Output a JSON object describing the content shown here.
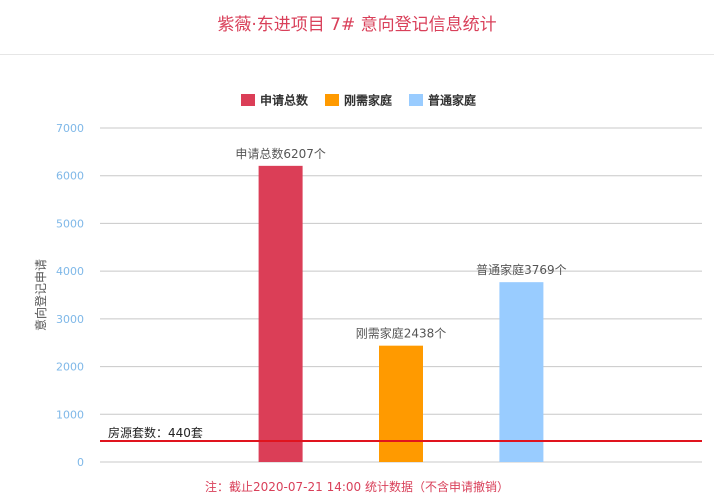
{
  "title": "紫薇·东进项目 7# 意向登记信息统计",
  "footnote": "注：截止2020-07-21 14:00 统计数据（不含申请撤销）",
  "colors": {
    "title": "#d9405a",
    "axis_tick": "#7fb8e8",
    "grid": "#c8c8c8",
    "reference_line": "#e0141e"
  },
  "chart_data": {
    "type": "bar",
    "categories": [
      "申请总数",
      "刚需家庭",
      "普通家庭"
    ],
    "values": [
      6207,
      2438,
      3769
    ],
    "colors": [
      "#db3e57",
      "#ff9a00",
      "#99ccff"
    ],
    "data_labels": [
      "申请总数6207个",
      "刚需家庭2438个",
      "普通家庭3769个"
    ],
    "legend": [
      "申请总数",
      "刚需家庭",
      "普通家庭"
    ],
    "legend_position": "top-center",
    "ylabel": "意向登记申请",
    "xlabel": "",
    "ylim": [
      0,
      7000
    ],
    "yticks": [
      "0",
      "1000",
      "2000",
      "3000",
      "4000",
      "5000",
      "6000",
      "7000"
    ],
    "grid": true,
    "reference_line": {
      "value": 440,
      "label": "房源套数：440套"
    }
  }
}
